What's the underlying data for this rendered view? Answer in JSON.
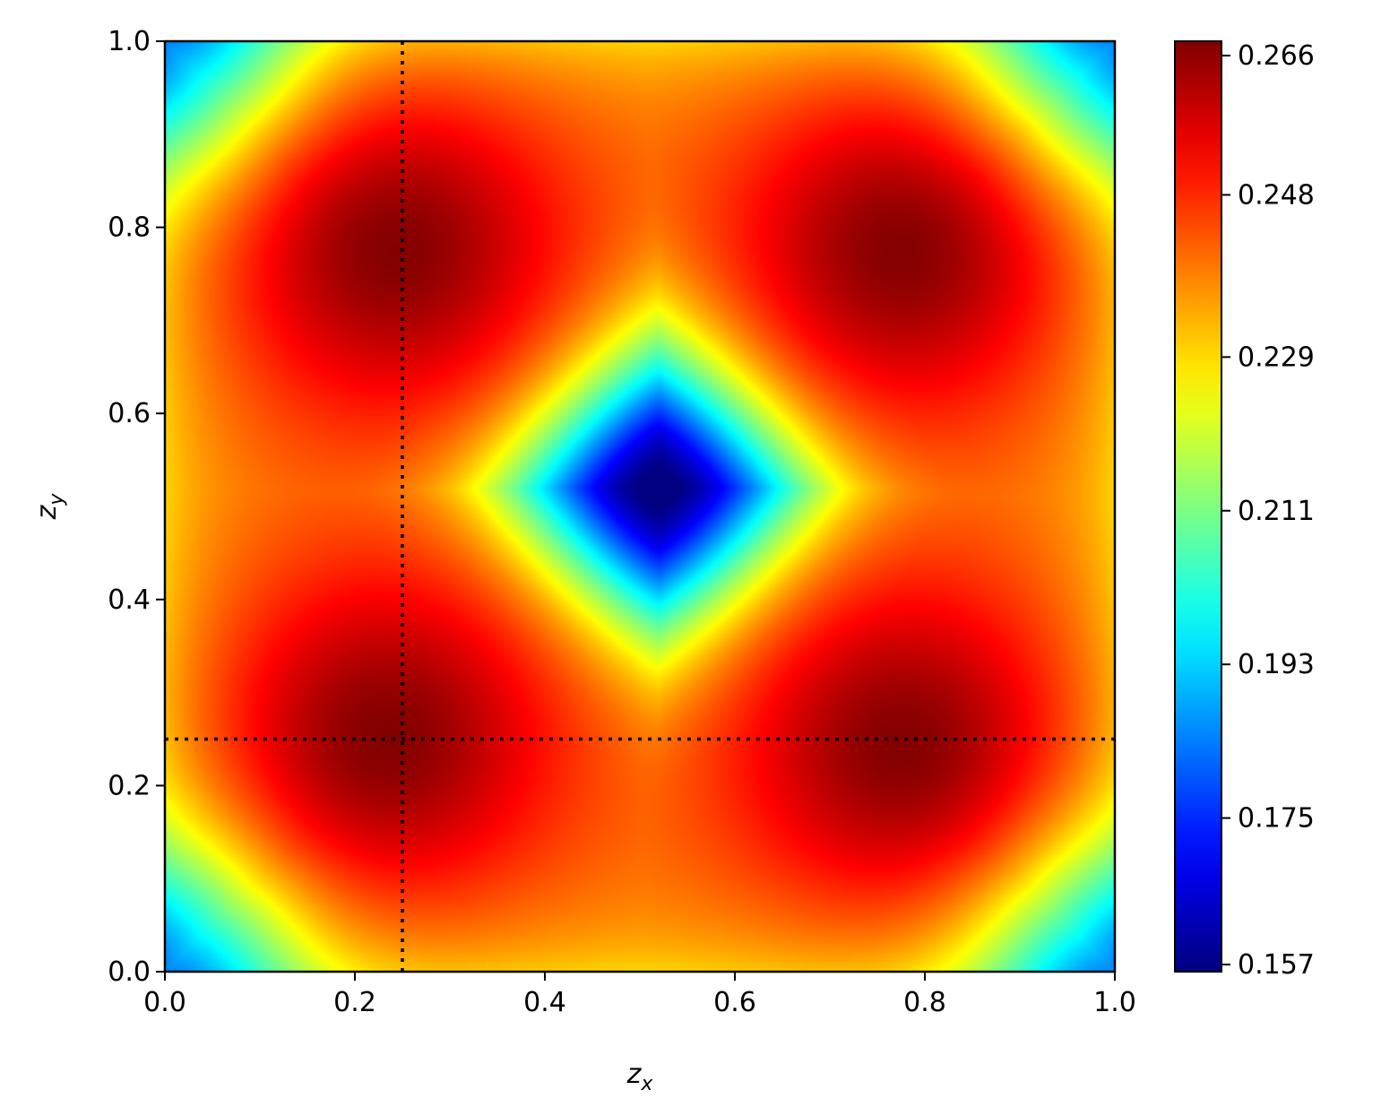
{
  "chart_data": {
    "type": "heatmap",
    "title": "",
    "xlabel": {
      "base": "z",
      "sub": "x"
    },
    "ylabel": {
      "base": "z",
      "sub": "y"
    },
    "xlim": [
      0.0,
      1.0
    ],
    "ylim": [
      0.0,
      1.0
    ],
    "xticks": [
      "0.0",
      "0.2",
      "0.4",
      "0.6",
      "0.8",
      "1.0"
    ],
    "yticks": [
      "0.0",
      "0.2",
      "0.4",
      "0.6",
      "0.8",
      "1.0"
    ],
    "colormap": "jet",
    "colorbar": {
      "range": [
        0.157,
        0.266
      ],
      "ticks": [
        "0.157",
        "0.175",
        "0.193",
        "0.211",
        "0.229",
        "0.248",
        "0.266"
      ]
    },
    "field": {
      "description": "four maxima near (0.25,0.25),(0.25,0.78),(0.78,0.25),(0.78,0.78); minimum at (0.52,0.52); low values at corners",
      "maxima": [
        [
          0.23,
          0.25
        ],
        [
          0.24,
          0.78
        ],
        [
          0.78,
          0.24
        ],
        [
          0.78,
          0.78
        ]
      ],
      "minimum": [
        0.52,
        0.52
      ],
      "max_value": 0.266,
      "min_value": 0.157
    },
    "reference_lines": [
      {
        "orientation": "vertical",
        "x": 0.25,
        "style": "dotted",
        "color": "#000000"
      },
      {
        "orientation": "horizontal",
        "y": 0.25,
        "style": "dotted",
        "color": "#000000"
      }
    ],
    "grid": false,
    "legend": "none"
  }
}
